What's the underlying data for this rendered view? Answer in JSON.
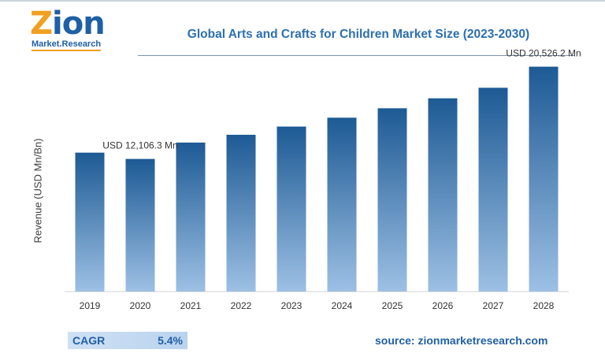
{
  "logo": {
    "word_first": "Z",
    "word_rest": "ion",
    "sub": "Market.Research"
  },
  "title": "Global Arts and Crafts for Children Market Size (2023-2030)",
  "colors": {
    "bar_dark": "#1d5a94",
    "bar_light": "#9dc0e4",
    "accent": "#2c6fb0"
  },
  "chart_data": {
    "type": "bar",
    "title": "Global Arts and Crafts for Children Market Size (2023-2030)",
    "xlabel": "",
    "ylabel": "Revenue (USD Mn/Bn)",
    "categories": [
      "2019",
      "2020",
      "2021",
      "2022",
      "2023",
      "2024",
      "2025",
      "2026",
      "2027",
      "2028"
    ],
    "values": [
      12680,
      12106.3,
      13600,
      14310,
      15060,
      15870,
      16730,
      17640,
      18600,
      20526.2
    ],
    "ylim": [
      0,
      21000
    ],
    "grid": false,
    "legend": "none",
    "annotations": [
      {
        "category": "2020",
        "text": "USD 12,106.3 Mn"
      },
      {
        "category": "2028",
        "text": "USD 20,526.2 Mn"
      }
    ]
  },
  "cagr": {
    "label": "CAGR",
    "value": "5.4%"
  },
  "source": "source: zionmarketresearch.com"
}
